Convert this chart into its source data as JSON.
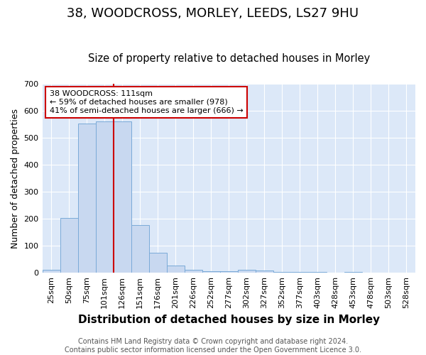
{
  "title1": "38, WOODCROSS, MORLEY, LEEDS, LS27 9HU",
  "title2": "Size of property relative to detached houses in Morley",
  "xlabel": "Distribution of detached houses by size in Morley",
  "ylabel": "Number of detached properties",
  "categories": [
    "25sqm",
    "50sqm",
    "75sqm",
    "101sqm",
    "126sqm",
    "151sqm",
    "176sqm",
    "201sqm",
    "226sqm",
    "252sqm",
    "277sqm",
    "302sqm",
    "327sqm",
    "352sqm",
    "377sqm",
    "403sqm",
    "428sqm",
    "453sqm",
    "478sqm",
    "503sqm",
    "528sqm"
  ],
  "values": [
    12,
    204,
    553,
    562,
    562,
    178,
    75,
    28,
    12,
    5,
    5,
    10,
    8,
    4,
    3,
    2,
    1,
    4,
    1,
    1,
    1
  ],
  "bar_color": "#c8d8f0",
  "bar_edge_color": "#7aaad8",
  "annotation_box_text": "38 WOODCROSS: 111sqm\n← 59% of detached houses are smaller (978)\n41% of semi-detached houses are larger (666) →",
  "annotation_box_color": "#ffffff",
  "annotation_box_edge_color": "#cc0000",
  "ylim": [
    0,
    700
  ],
  "yticks": [
    0,
    100,
    200,
    300,
    400,
    500,
    600,
    700
  ],
  "fig_background_color": "#ffffff",
  "axes_background_color": "#dce8f8",
  "grid_color": "#ffffff",
  "footer_text": "Contains HM Land Registry data © Crown copyright and database right 2024.\nContains public sector information licensed under the Open Government Licence 3.0.",
  "title1_fontsize": 13,
  "title2_fontsize": 10.5,
  "xlabel_fontsize": 11,
  "ylabel_fontsize": 9,
  "tick_fontsize": 8,
  "annotation_fontsize": 8,
  "footer_fontsize": 7
}
